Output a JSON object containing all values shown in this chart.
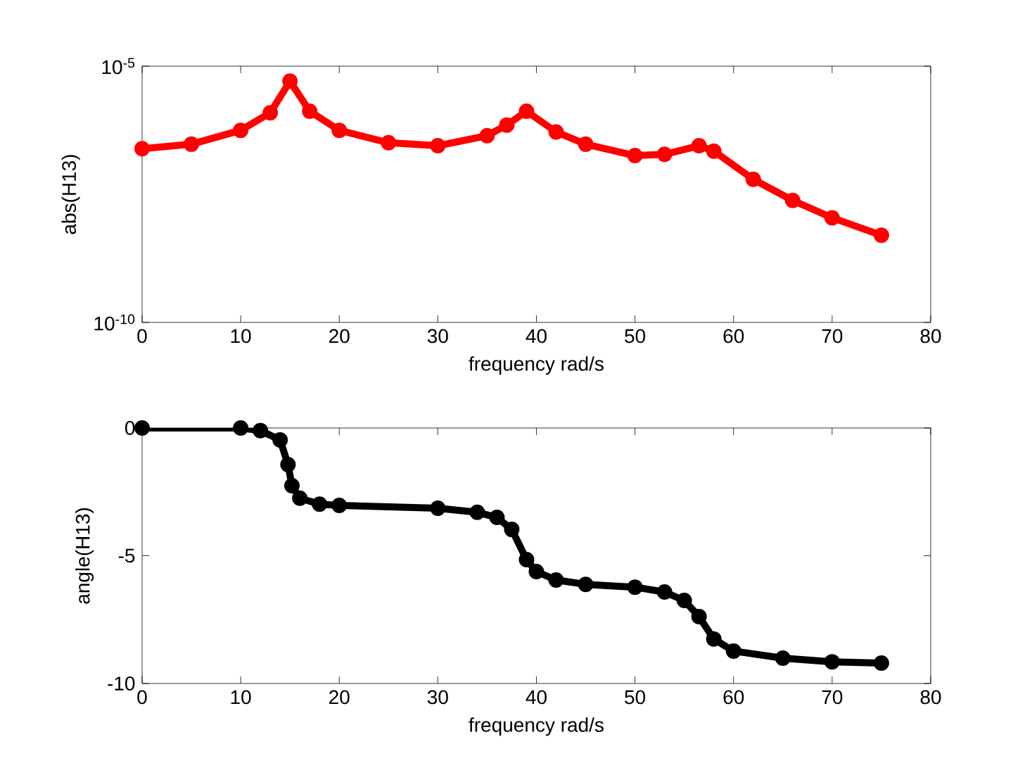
{
  "chart_data": [
    {
      "type": "line",
      "xlabel": "frequency rad/s",
      "ylabel": "abs(H13)",
      "log": "y",
      "marker": "circle",
      "line_style": "solid",
      "x": [
        0,
        5,
        10,
        13,
        15,
        17,
        20,
        25,
        30,
        35,
        37,
        39,
        42,
        45,
        50,
        53,
        56.5,
        58,
        62,
        66,
        70,
        75
      ],
      "series": [
        {
          "color": "#ff0000",
          "values": [
            2.45e-07,
            3e-07,
            5.6e-07,
            1.23e-06,
            5.1e-06,
            1.32e-06,
            5.6e-07,
            3.2e-07,
            2.8e-07,
            4.4e-07,
            7.1e-07,
            1.32e-06,
            5.2e-07,
            3e-07,
            1.8e-07,
            1.9e-07,
            2.8e-07,
            2.2e-07,
            6.2e-08,
            2.4e-08,
            1.1e-08,
            5e-09
          ]
        }
      ],
      "xlim": [
        0,
        80
      ],
      "ylim": [
        1e-10,
        1e-05
      ],
      "xticks": [
        0,
        10,
        20,
        30,
        40,
        50,
        60,
        70,
        80
      ],
      "yticks": [
        {
          "value": 1e-10,
          "label": "10$^{-10}$"
        },
        {
          "value": 1e-05,
          "label": "10$^{-5}$"
        }
      ]
    },
    {
      "type": "line",
      "xlabel": "frequency rad/s",
      "ylabel": "angle(H13)",
      "marker": "circle",
      "line_style": "solid",
      "x": [
        0,
        10,
        12,
        14,
        14.8,
        15.2,
        16,
        18,
        20,
        30,
        34,
        36,
        37.5,
        39,
        40,
        42,
        45,
        50,
        53,
        55,
        56.5,
        58,
        60,
        65,
        70,
        75
      ],
      "series": [
        {
          "color": "#000000",
          "values": [
            0,
            0,
            -0.1,
            -0.47,
            -1.43,
            -2.26,
            -2.75,
            -2.98,
            -3.03,
            -3.14,
            -3.3,
            -3.5,
            -3.97,
            -5.15,
            -5.62,
            -5.95,
            -6.12,
            -6.23,
            -6.42,
            -6.75,
            -7.38,
            -8.26,
            -8.73,
            -9.01,
            -9.15,
            -9.2
          ]
        }
      ],
      "xlim": [
        0,
        80
      ],
      "ylim": [
        -10,
        0
      ],
      "xticks": [
        0,
        10,
        20,
        30,
        40,
        50,
        60,
        70,
        80
      ],
      "yticks": [
        -10,
        -5,
        0
      ]
    }
  ]
}
